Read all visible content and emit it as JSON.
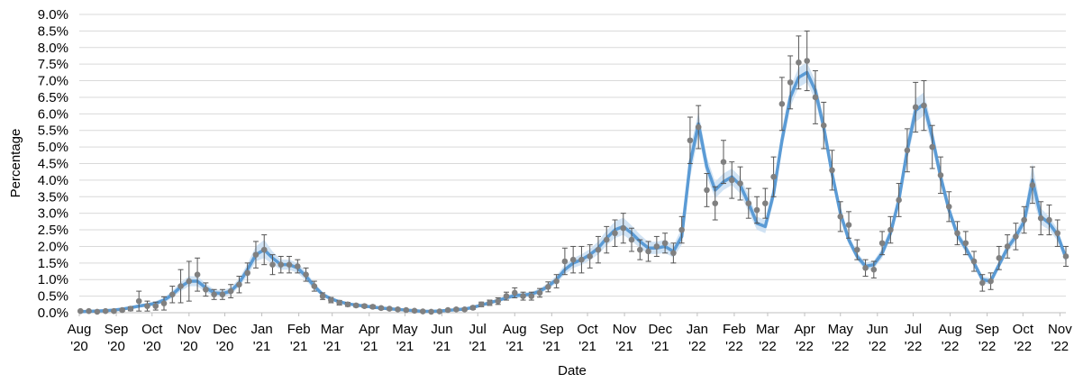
{
  "chart_data": {
    "type": "scatter",
    "x_label": "Date",
    "y_label": "Percentage",
    "xlim": [
      "2020-08-01",
      "2022-11-06"
    ],
    "ylim": [
      0,
      9
    ],
    "grid": true,
    "yticks": [
      {
        "value": 0,
        "label": "0.0%"
      },
      {
        "value": 0.5,
        "label": "0.5%"
      },
      {
        "value": 1,
        "label": "1.0%"
      },
      {
        "value": 1.5,
        "label": "1.5%"
      },
      {
        "value": 2,
        "label": "2.0%"
      },
      {
        "value": 2.5,
        "label": "2.5%"
      },
      {
        "value": 3,
        "label": "3.0%"
      },
      {
        "value": 3.5,
        "label": "3.5%"
      },
      {
        "value": 4,
        "label": "4.0%"
      },
      {
        "value": 4.5,
        "label": "4.5%"
      },
      {
        "value": 5,
        "label": "5.0%"
      },
      {
        "value": 5.5,
        "label": "5.5%"
      },
      {
        "value": 6,
        "label": "6.0%"
      },
      {
        "value": 6.5,
        "label": "6.5%"
      },
      {
        "value": 7,
        "label": "7.0%"
      },
      {
        "value": 7.5,
        "label": "7.5%"
      },
      {
        "value": 8,
        "label": "8.0%"
      },
      {
        "value": 8.5,
        "label": "8.5%"
      },
      {
        "value": 9,
        "label": "9.0%"
      }
    ],
    "xticks": [
      {
        "value": "2020-08-01",
        "label": "Aug '20"
      },
      {
        "value": "2020-09-01",
        "label": "Sep '20"
      },
      {
        "value": "2020-10-01",
        "label": "Oct '20"
      },
      {
        "value": "2020-11-01",
        "label": "Nov '20"
      },
      {
        "value": "2020-12-01",
        "label": "Dec '20"
      },
      {
        "value": "2021-01-01",
        "label": "Jan '21"
      },
      {
        "value": "2021-02-01",
        "label": "Feb '21"
      },
      {
        "value": "2021-03-01",
        "label": "Mar '21"
      },
      {
        "value": "2021-04-01",
        "label": "Apr '21"
      },
      {
        "value": "2021-05-01",
        "label": "May '21"
      },
      {
        "value": "2021-06-01",
        "label": "Jun '21"
      },
      {
        "value": "2021-07-01",
        "label": "Jul '21"
      },
      {
        "value": "2021-08-01",
        "label": "Aug '21"
      },
      {
        "value": "2021-09-01",
        "label": "Sep '21"
      },
      {
        "value": "2021-10-01",
        "label": "Oct '21"
      },
      {
        "value": "2021-11-01",
        "label": "Nov '21"
      },
      {
        "value": "2021-12-01",
        "label": "Dec '21"
      },
      {
        "value": "2022-01-01",
        "label": "Jan '22"
      },
      {
        "value": "2022-02-01",
        "label": "Feb '22"
      },
      {
        "value": "2022-03-01",
        "label": "Mar '22"
      },
      {
        "value": "2022-04-01",
        "label": "Apr '22"
      },
      {
        "value": "2022-05-01",
        "label": "May '22"
      },
      {
        "value": "2022-06-01",
        "label": "Jun '22"
      },
      {
        "value": "2022-07-01",
        "label": "Jul '22"
      },
      {
        "value": "2022-08-01",
        "label": "Aug '22"
      },
      {
        "value": "2022-09-01",
        "label": "Sep '22"
      },
      {
        "value": "2022-10-01",
        "label": "Oct '22"
      },
      {
        "value": "2022-11-01",
        "label": "Nov '22"
      }
    ],
    "x": [
      "2020-08-02",
      "2020-08-09",
      "2020-08-16",
      "2020-08-23",
      "2020-08-30",
      "2020-09-06",
      "2020-09-13",
      "2020-09-20",
      "2020-09-27",
      "2020-10-04",
      "2020-10-11",
      "2020-10-18",
      "2020-10-25",
      "2020-11-01",
      "2020-11-08",
      "2020-11-15",
      "2020-11-22",
      "2020-11-29",
      "2020-12-06",
      "2020-12-13",
      "2020-12-20",
      "2020-12-27",
      "2021-01-03",
      "2021-01-10",
      "2021-01-17",
      "2021-01-24",
      "2021-01-31",
      "2021-02-07",
      "2021-02-14",
      "2021-02-21",
      "2021-02-28",
      "2021-03-07",
      "2021-03-14",
      "2021-03-21",
      "2021-03-28",
      "2021-04-04",
      "2021-04-11",
      "2021-04-18",
      "2021-04-25",
      "2021-05-02",
      "2021-05-09",
      "2021-05-16",
      "2021-05-23",
      "2021-05-30",
      "2021-06-06",
      "2021-06-13",
      "2021-06-20",
      "2021-06-27",
      "2021-07-04",
      "2021-07-11",
      "2021-07-18",
      "2021-07-25",
      "2021-08-01",
      "2021-08-08",
      "2021-08-15",
      "2021-08-22",
      "2021-08-29",
      "2021-09-05",
      "2021-09-12",
      "2021-09-19",
      "2021-09-26",
      "2021-10-03",
      "2021-10-10",
      "2021-10-17",
      "2021-10-24",
      "2021-10-31",
      "2021-11-07",
      "2021-11-14",
      "2021-11-21",
      "2021-11-28",
      "2021-12-05",
      "2021-12-12",
      "2021-12-19",
      "2021-12-26",
      "2022-01-02",
      "2022-01-09",
      "2022-01-16",
      "2022-01-23",
      "2022-01-30",
      "2022-02-06",
      "2022-02-13",
      "2022-02-20",
      "2022-02-27",
      "2022-03-06",
      "2022-03-13",
      "2022-03-20",
      "2022-03-27",
      "2022-04-03",
      "2022-04-10",
      "2022-04-17",
      "2022-04-24",
      "2022-05-01",
      "2022-05-08",
      "2022-05-15",
      "2022-05-22",
      "2022-05-29",
      "2022-06-05",
      "2022-06-12",
      "2022-06-19",
      "2022-06-26",
      "2022-07-03",
      "2022-07-10",
      "2022-07-17",
      "2022-07-24",
      "2022-07-31",
      "2022-08-07",
      "2022-08-14",
      "2022-08-21",
      "2022-08-28",
      "2022-09-04",
      "2022-09-11",
      "2022-09-18",
      "2022-09-25",
      "2022-10-02",
      "2022-10-09",
      "2022-10-16",
      "2022-10-23",
      "2022-10-30",
      "2022-11-06"
    ],
    "series": [
      {
        "type": "band",
        "color": "#c6dcf1",
        "lower": [
          0.02,
          0.03,
          0.04,
          0.05,
          0.06,
          0.08,
          0.11,
          0.15,
          0.18,
          0.22,
          0.3,
          0.45,
          0.65,
          0.8,
          0.8,
          0.62,
          0.5,
          0.48,
          0.55,
          0.78,
          1.12,
          1.55,
          1.65,
          1.45,
          1.3,
          1.3,
          1.2,
          0.97,
          0.7,
          0.48,
          0.37,
          0.29,
          0.23,
          0.2,
          0.17,
          0.14,
          0.12,
          0.1,
          0.08,
          0.06,
          0.04,
          0.03,
          0.03,
          0.04,
          0.05,
          0.07,
          0.09,
          0.13,
          0.2,
          0.26,
          0.32,
          0.39,
          0.45,
          0.46,
          0.49,
          0.57,
          0.71,
          0.89,
          1.16,
          1.35,
          1.44,
          1.58,
          1.76,
          2.03,
          2.25,
          2.35,
          2.17,
          1.95,
          1.77,
          1.77,
          1.8,
          1.67,
          2.05,
          4.05,
          5.35,
          4.1,
          3.45,
          3.7,
          3.85,
          3.6,
          3.05,
          2.5,
          2.4,
          3.35,
          4.9,
          6.2,
          6.8,
          6.95,
          6.4,
          5.35,
          3.97,
          2.82,
          2.06,
          1.58,
          1.29,
          1.33,
          1.65,
          2.22,
          3.17,
          4.6,
          5.75,
          5.95,
          5.0,
          3.86,
          2.92,
          2.2,
          1.82,
          1.38,
          0.9,
          0.85,
          1.33,
          1.81,
          2.14,
          2.55,
          3.5,
          2.65,
          2.5,
          2.17,
          1.5
        ],
        "upper": [
          0.05,
          0.06,
          0.07,
          0.08,
          0.1,
          0.14,
          0.19,
          0.25,
          0.3,
          0.35,
          0.46,
          0.66,
          0.92,
          1.1,
          1.1,
          0.88,
          0.7,
          0.68,
          0.76,
          1.03,
          1.48,
          2.0,
          2.2,
          1.85,
          1.6,
          1.6,
          1.5,
          1.23,
          0.9,
          0.62,
          0.47,
          0.37,
          0.31,
          0.26,
          0.23,
          0.2,
          0.16,
          0.14,
          0.12,
          0.1,
          0.08,
          0.06,
          0.06,
          0.07,
          0.09,
          0.11,
          0.14,
          0.19,
          0.27,
          0.34,
          0.42,
          0.51,
          0.59,
          0.6,
          0.63,
          0.73,
          0.9,
          1.12,
          1.45,
          1.65,
          1.76,
          1.92,
          2.15,
          2.48,
          2.75,
          2.87,
          2.63,
          2.36,
          2.14,
          2.14,
          2.2,
          2.03,
          2.55,
          4.95,
          6.05,
          4.7,
          3.95,
          4.2,
          4.35,
          4.1,
          3.55,
          2.9,
          2.8,
          3.85,
          5.5,
          6.8,
          7.4,
          7.55,
          7.0,
          5.85,
          4.43,
          3.18,
          2.34,
          1.82,
          1.51,
          1.57,
          1.95,
          2.58,
          3.63,
          5.2,
          6.45,
          6.65,
          5.6,
          4.34,
          3.28,
          2.5,
          2.08,
          1.62,
          1.1,
          1.05,
          1.57,
          2.09,
          2.46,
          2.95,
          4.5,
          3.15,
          2.9,
          2.53,
          1.8
        ]
      },
      {
        "type": "line",
        "color": "#5b9bd5",
        "values": [
          0.03,
          0.04,
          0.05,
          0.06,
          0.08,
          0.11,
          0.15,
          0.2,
          0.24,
          0.28,
          0.38,
          0.55,
          0.78,
          0.95,
          0.95,
          0.75,
          0.6,
          0.58,
          0.65,
          0.9,
          1.3,
          1.75,
          1.9,
          1.65,
          1.45,
          1.45,
          1.35,
          1.1,
          0.8,
          0.55,
          0.42,
          0.33,
          0.27,
          0.23,
          0.2,
          0.17,
          0.14,
          0.12,
          0.1,
          0.08,
          0.06,
          0.04,
          0.04,
          0.05,
          0.07,
          0.09,
          0.11,
          0.16,
          0.23,
          0.3,
          0.37,
          0.45,
          0.52,
          0.53,
          0.56,
          0.65,
          0.8,
          1.0,
          1.3,
          1.5,
          1.6,
          1.75,
          1.95,
          2.25,
          2.5,
          2.6,
          2.4,
          2.15,
          1.95,
          1.95,
          2.0,
          1.85,
          2.3,
          4.5,
          5.7,
          4.4,
          3.7,
          3.95,
          4.1,
          3.85,
          3.3,
          2.7,
          2.6,
          3.6,
          5.2,
          6.5,
          7.1,
          7.25,
          6.7,
          5.6,
          4.2,
          3.0,
          2.2,
          1.7,
          1.4,
          1.45,
          1.8,
          2.4,
          3.4,
          4.9,
          6.1,
          6.3,
          5.3,
          4.1,
          3.1,
          2.35,
          1.95,
          1.5,
          1.0,
          0.95,
          1.45,
          1.95,
          2.3,
          2.75,
          4.0,
          2.9,
          2.7,
          2.35,
          1.65
        ]
      },
      {
        "type": "scatter",
        "color": "#808080",
        "error_color": "#555555",
        "values": [
          0.05,
          0.05,
          0.03,
          0.05,
          0.05,
          0.08,
          0.12,
          0.35,
          0.2,
          0.2,
          0.28,
          0.55,
          0.8,
          0.95,
          1.15,
          0.7,
          0.55,
          0.55,
          0.65,
          0.85,
          1.2,
          1.75,
          1.9,
          1.45,
          1.45,
          1.45,
          1.4,
          1.15,
          0.8,
          0.5,
          0.38,
          0.3,
          0.25,
          0.22,
          0.2,
          0.18,
          0.14,
          0.12,
          0.1,
          0.08,
          0.06,
          0.04,
          0.03,
          0.04,
          0.08,
          0.1,
          0.1,
          0.15,
          0.25,
          0.3,
          0.35,
          0.5,
          0.6,
          0.5,
          0.5,
          0.6,
          0.78,
          0.95,
          1.55,
          1.6,
          1.6,
          1.7,
          1.9,
          2.2,
          2.4,
          2.55,
          2.2,
          1.9,
          1.85,
          2.0,
          2.1,
          1.8,
          2.5,
          5.2,
          5.6,
          3.7,
          3.3,
          4.55,
          4.0,
          3.9,
          3.3,
          3.1,
          3.3,
          4.1,
          6.3,
          6.95,
          7.55,
          7.6,
          6.5,
          5.65,
          4.3,
          2.9,
          2.65,
          1.9,
          1.35,
          1.3,
          2.1,
          2.5,
          3.4,
          4.9,
          6.2,
          6.25,
          5.0,
          4.15,
          3.2,
          2.4,
          2.1,
          1.55,
          0.9,
          0.95,
          1.65,
          2.0,
          2.3,
          2.8,
          3.85,
          2.85,
          2.8,
          2.4,
          1.7
        ],
        "errors": [
          0.03,
          0.03,
          0.02,
          0.03,
          0.03,
          0.04,
          0.06,
          0.3,
          0.15,
          0.12,
          0.2,
          0.25,
          0.5,
          0.6,
          0.5,
          0.2,
          0.15,
          0.15,
          0.2,
          0.25,
          0.3,
          0.4,
          0.45,
          0.3,
          0.25,
          0.25,
          0.2,
          0.2,
          0.15,
          0.1,
          0.08,
          0.07,
          0.06,
          0.05,
          0.05,
          0.05,
          0.04,
          0.04,
          0.04,
          0.03,
          0.03,
          0.02,
          0.02,
          0.02,
          0.03,
          0.04,
          0.04,
          0.05,
          0.07,
          0.08,
          0.1,
          0.12,
          0.15,
          0.12,
          0.12,
          0.13,
          0.15,
          0.2,
          0.4,
          0.4,
          0.4,
          0.35,
          0.4,
          0.4,
          0.4,
          0.45,
          0.35,
          0.3,
          0.3,
          0.3,
          0.3,
          0.3,
          0.4,
          0.7,
          0.65,
          0.5,
          0.5,
          0.65,
          0.55,
          0.5,
          0.45,
          0.4,
          0.45,
          0.6,
          0.8,
          0.8,
          0.8,
          0.9,
          0.8,
          0.7,
          0.6,
          0.45,
          0.4,
          0.3,
          0.25,
          0.25,
          0.35,
          0.4,
          0.5,
          0.65,
          0.75,
          0.75,
          0.65,
          0.55,
          0.45,
          0.35,
          0.35,
          0.3,
          0.25,
          0.25,
          0.35,
          0.35,
          0.4,
          0.4,
          0.55,
          0.5,
          0.45,
          0.4,
          0.3
        ]
      }
    ]
  }
}
